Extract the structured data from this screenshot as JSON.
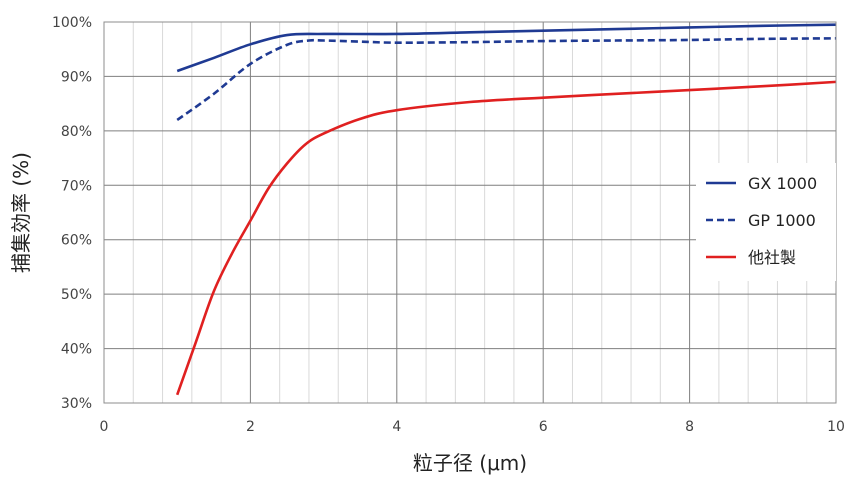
{
  "chart_data": {
    "type": "line",
    "title": "",
    "xlabel": "粒子径 (μm)",
    "ylabel": "捕集効率 (%)",
    "xlim": [
      0,
      10
    ],
    "ylim": [
      30,
      100
    ],
    "x_ticks": [
      "0",
      "2",
      "4",
      "6",
      "8",
      "10"
    ],
    "x_tick_values": [
      0,
      2,
      4,
      6,
      8,
      10
    ],
    "y_ticks": [
      "30%",
      "40%",
      "50%",
      "60%",
      "70%",
      "80%",
      "90%",
      "100%"
    ],
    "y_tick_values": [
      30,
      40,
      50,
      60,
      70,
      80,
      90,
      100
    ],
    "grid": {
      "major": true,
      "minor_x": true
    },
    "legend_position": "right",
    "series": [
      {
        "name": "GX 1000",
        "color": "#1f3a93",
        "dash": "solid",
        "x": [
          1.0,
          1.5,
          2.0,
          2.5,
          3.0,
          4.0,
          5.0,
          6.0,
          7.0,
          8.0,
          9.0,
          10.0
        ],
        "y": [
          91.0,
          93.4,
          95.9,
          97.6,
          97.8,
          97.8,
          98.1,
          98.4,
          98.7,
          99.0,
          99.3,
          99.5
        ]
      },
      {
        "name": "GP 1000",
        "color": "#1f3a93",
        "dash": "dashed",
        "x": [
          1.0,
          1.5,
          2.0,
          2.5,
          2.8,
          3.0,
          3.5,
          4.0,
          5.0,
          6.0,
          7.0,
          8.0,
          9.0,
          10.0
        ],
        "y": [
          82.0,
          86.8,
          92.3,
          95.8,
          96.6,
          96.6,
          96.4,
          96.2,
          96.3,
          96.5,
          96.6,
          96.7,
          96.9,
          97.0
        ]
      },
      {
        "name": "他社製",
        "color": "#e02020",
        "dash": "solid",
        "x": [
          1.0,
          1.25,
          1.5,
          1.75,
          2.0,
          2.25,
          2.5,
          2.75,
          3.0,
          3.5,
          4.0,
          5.0,
          6.0,
          7.0,
          8.0,
          9.0,
          10.0
        ],
        "y": [
          31.5,
          41.0,
          50.5,
          57.5,
          63.5,
          69.5,
          74.0,
          77.5,
          79.5,
          82.2,
          83.8,
          85.3,
          86.1,
          86.8,
          87.5,
          88.2,
          89.0
        ]
      }
    ]
  }
}
